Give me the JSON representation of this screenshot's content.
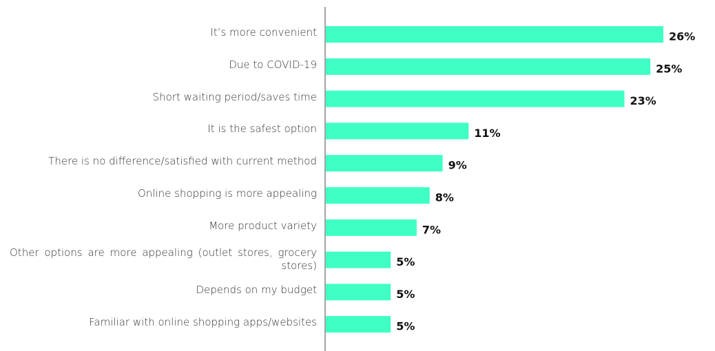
{
  "chart_data": {
    "type": "bar",
    "orientation": "horizontal",
    "categories": [
      "It’s more convenient",
      "Due to COVID-19",
      "Short waiting period/saves time",
      "It is the safest option",
      "There is no difference/satisfied with current method",
      "Online shopping is more appealing",
      "More product variety",
      "Other options are more appealing (outlet stores, grocery stores)",
      "Depends on my budget",
      "Familiar with online shopping apps/websites"
    ],
    "values": [
      26,
      25,
      23,
      11,
      9,
      8,
      7,
      5,
      5,
      5
    ],
    "value_labels": [
      "26%",
      "25%",
      "23%",
      "11%",
      "9%",
      "8%",
      "7%",
      "5%",
      "5%",
      "5%"
    ],
    "color": "#40ffc4"
  }
}
